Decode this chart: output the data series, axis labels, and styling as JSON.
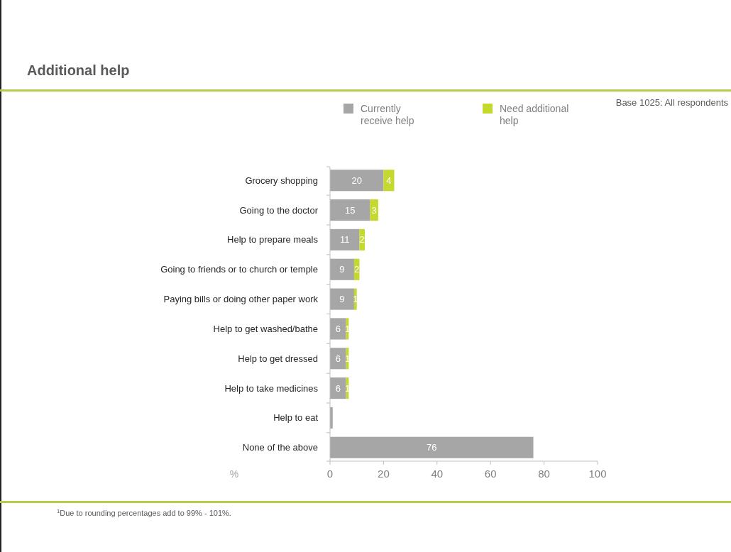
{
  "chart_data": {
    "type": "bar",
    "orientation": "horizontal",
    "stacked": true,
    "title": "Additional help",
    "xlabel": "%",
    "annotations": [
      "Base 1025: All respondents",
      "$^{1}$Due to rounding percentages add to 99% - 101%."
    ],
    "categories": [
      "Grocery shopping",
      "Going to the doctor",
      "Help to prepare meals",
      "Going to friends or to church or temple",
      "Paying bills or doing other paper work",
      "Help to get washed/bathe",
      "Help to get dressed",
      "Help to take medicines",
      "Help to eat",
      "None of the above"
    ],
    "series": [
      {
        "name": "Currently receive help",
        "color": "#a6a6a6",
        "values": [
          20,
          15,
          11,
          9,
          9,
          6,
          6,
          6,
          1,
          76
        ],
        "value_labels": [
          "20",
          "15",
          "11",
          "9",
          "9",
          "6",
          "6",
          "6",
          null,
          "76"
        ]
      },
      {
        "name": "Need additional help",
        "color": "#c4d82e",
        "values": [
          4,
          3,
          2,
          2,
          1,
          1,
          1,
          1,
          0,
          0
        ],
        "value_labels": [
          "4",
          "3",
          "2",
          "2",
          "1",
          "1",
          "1",
          "1",
          null,
          null
        ]
      }
    ],
    "xlim": [
      0,
      100
    ],
    "xticks": [
      0,
      20,
      40,
      60,
      80,
      100
    ],
    "legend": "top",
    "grid": false
  }
}
